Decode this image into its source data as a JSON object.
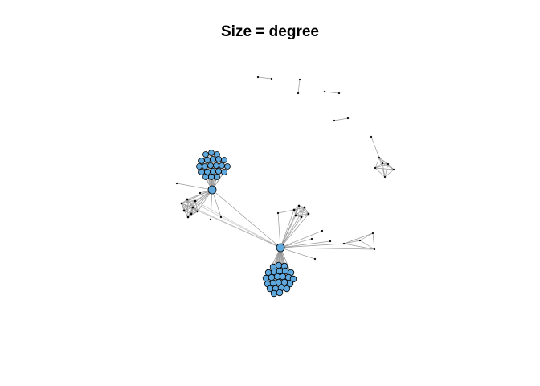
{
  "title": "Size = degree",
  "colors": {
    "node_fill": "#5FA8DD",
    "node_stroke": "#000000",
    "edge": "#9a9a9a",
    "background": "#ffffff"
  }
}
